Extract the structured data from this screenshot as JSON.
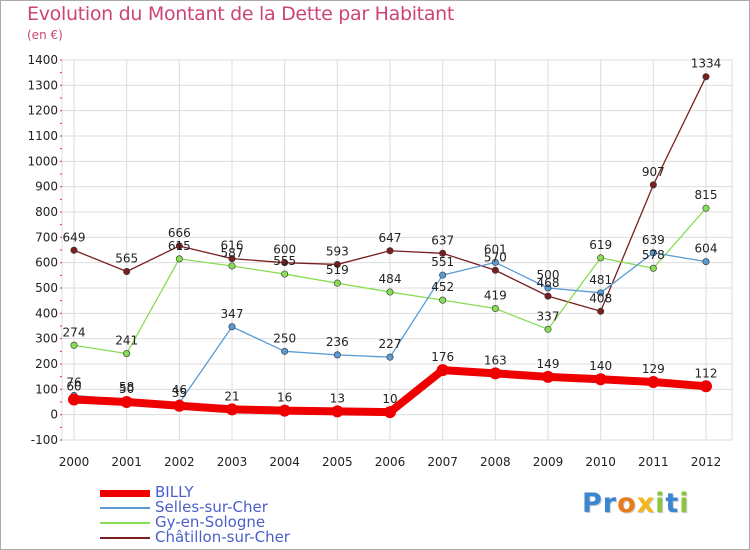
{
  "title": "Evolution du Montant de la Dette par Habitant",
  "subtitle": "(en €)",
  "logo": {
    "text": "Proxiti",
    "letters": [
      {
        "ch": "P",
        "color": "#3a86d0"
      },
      {
        "ch": "r",
        "color": "#3a86d0"
      },
      {
        "ch": "o",
        "color": "#e87a1e"
      },
      {
        "ch": "x",
        "color": "#f2b61c"
      },
      {
        "ch": "i",
        "color": "#8cc63f"
      },
      {
        "ch": "t",
        "color": "#3a86d0"
      },
      {
        "ch": "i",
        "color": "#8cc63f"
      }
    ]
  },
  "chart_data": {
    "type": "line",
    "title": "Evolution du Montant de la Dette par Habitant",
    "subtitle": "(en €)",
    "x": [
      "2000",
      "2001",
      "2002",
      "2003",
      "2004",
      "2005",
      "2006",
      "2007",
      "2008",
      "2009",
      "2010",
      "2011",
      "2012"
    ],
    "ylim": [
      -100,
      1400
    ],
    "yticks": [
      -100,
      0,
      100,
      200,
      300,
      400,
      500,
      600,
      700,
      800,
      900,
      1000,
      1100,
      1200,
      1300,
      1400
    ],
    "grid": true,
    "legend_position": "bottom-left",
    "series": [
      {
        "name": "BILLY",
        "color": "#ee0000",
        "width": "thick",
        "values": [
          60,
          50,
          35,
          21,
          16,
          13,
          10,
          176,
          163,
          149,
          140,
          129,
          112
        ],
        "labels": [
          "60",
          "50",
          "35",
          "21",
          "16",
          "13",
          "10",
          "176",
          "163",
          "149",
          "140",
          "129",
          "112"
        ]
      },
      {
        "name": "Selles-sur-Cher",
        "color": "#5b9bd5",
        "width": "thin",
        "values": [
          76,
          58,
          46,
          347,
          250,
          236,
          227,
          551,
          601,
          500,
          481,
          639,
          604
        ],
        "labels": [
          "76",
          "58",
          "46",
          "347",
          "250",
          "236",
          "227",
          "551",
          "601",
          "500",
          "481",
          "639",
          "604"
        ]
      },
      {
        "name": "Gy-en-Sologne",
        "color": "#88dd55",
        "width": "thin",
        "values": [
          274,
          241,
          615,
          587,
          555,
          519,
          484,
          452,
          419,
          337,
          619,
          578,
          815
        ],
        "labels": [
          "274",
          "241",
          "615",
          "587",
          "555",
          "519",
          "484",
          "452",
          "419",
          "337",
          "619",
          "578",
          "815"
        ]
      },
      {
        "name": "Châtillon-sur-Cher",
        "color": "#7a1f1f",
        "width": "thin",
        "values": [
          649,
          565,
          666,
          616,
          600,
          593,
          647,
          637,
          570,
          468,
          408,
          907,
          1334
        ],
        "labels": [
          "649",
          "565",
          "666",
          "616",
          "600",
          "593",
          "647",
          "637",
          "570",
          "468",
          "408",
          "907",
          "1334"
        ]
      }
    ]
  }
}
